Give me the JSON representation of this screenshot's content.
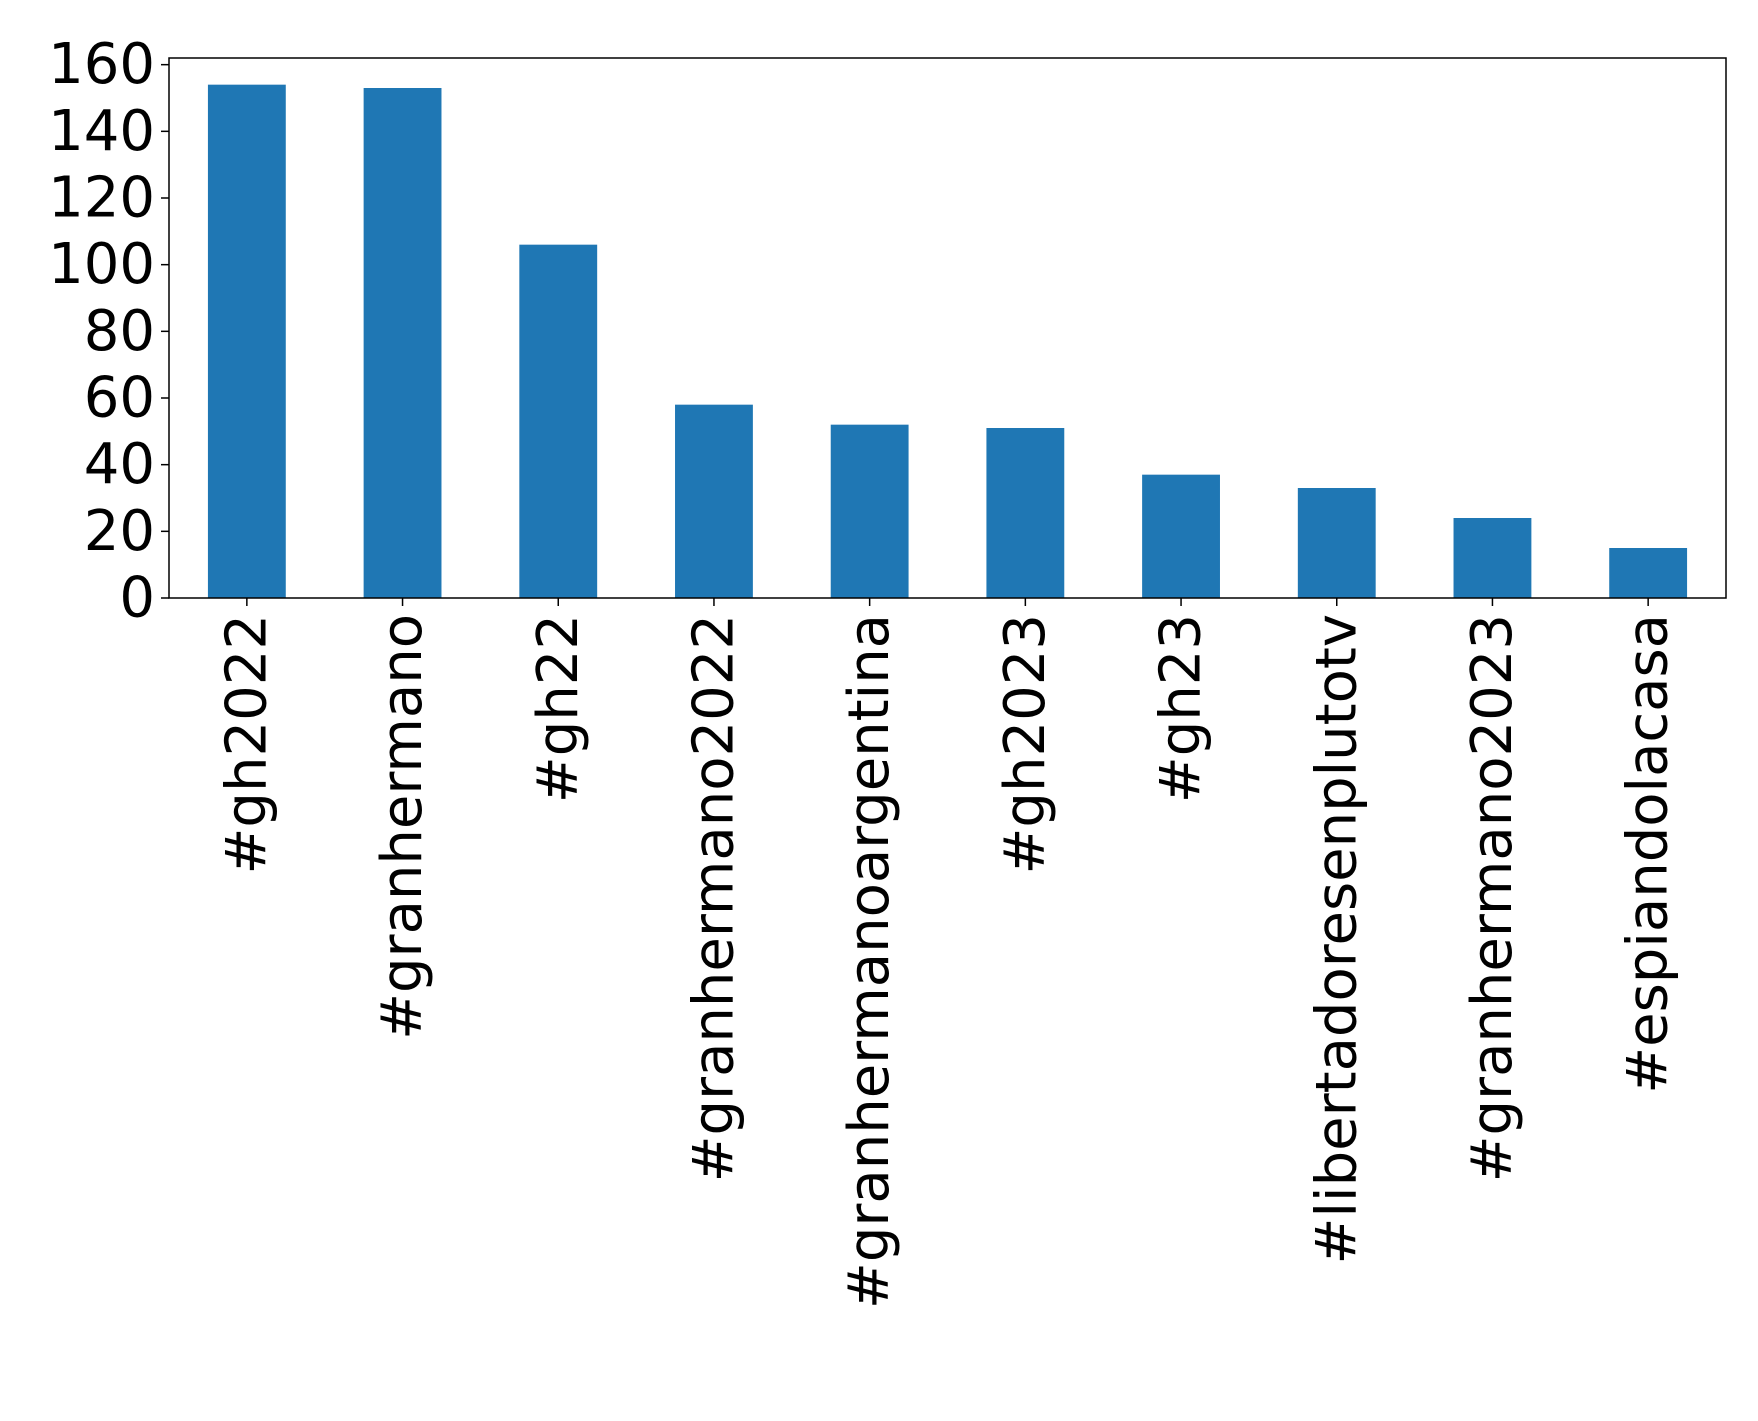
{
  "chart_data": {
    "type": "bar",
    "categories": [
      "#gh2022",
      "#granhermano",
      "#gh22",
      "#granhermano2022",
      "#granhermanoargentina",
      "#gh2023",
      "#gh23",
      "#libertadoresenplutotv",
      "#granhermano2023",
      "#espiandolacasa"
    ],
    "values": [
      154,
      153,
      106,
      58,
      52,
      51,
      37,
      33,
      24,
      15
    ],
    "title": "",
    "xlabel": "",
    "ylabel": "",
    "ylim": [
      0,
      162
    ],
    "yticks": [
      0,
      20,
      40,
      60,
      80,
      100,
      120,
      140,
      160
    ],
    "grid": false,
    "legend": "none",
    "colors": {
      "bar": "#1f77b4",
      "axis": "#000000",
      "text": "#000000"
    }
  }
}
